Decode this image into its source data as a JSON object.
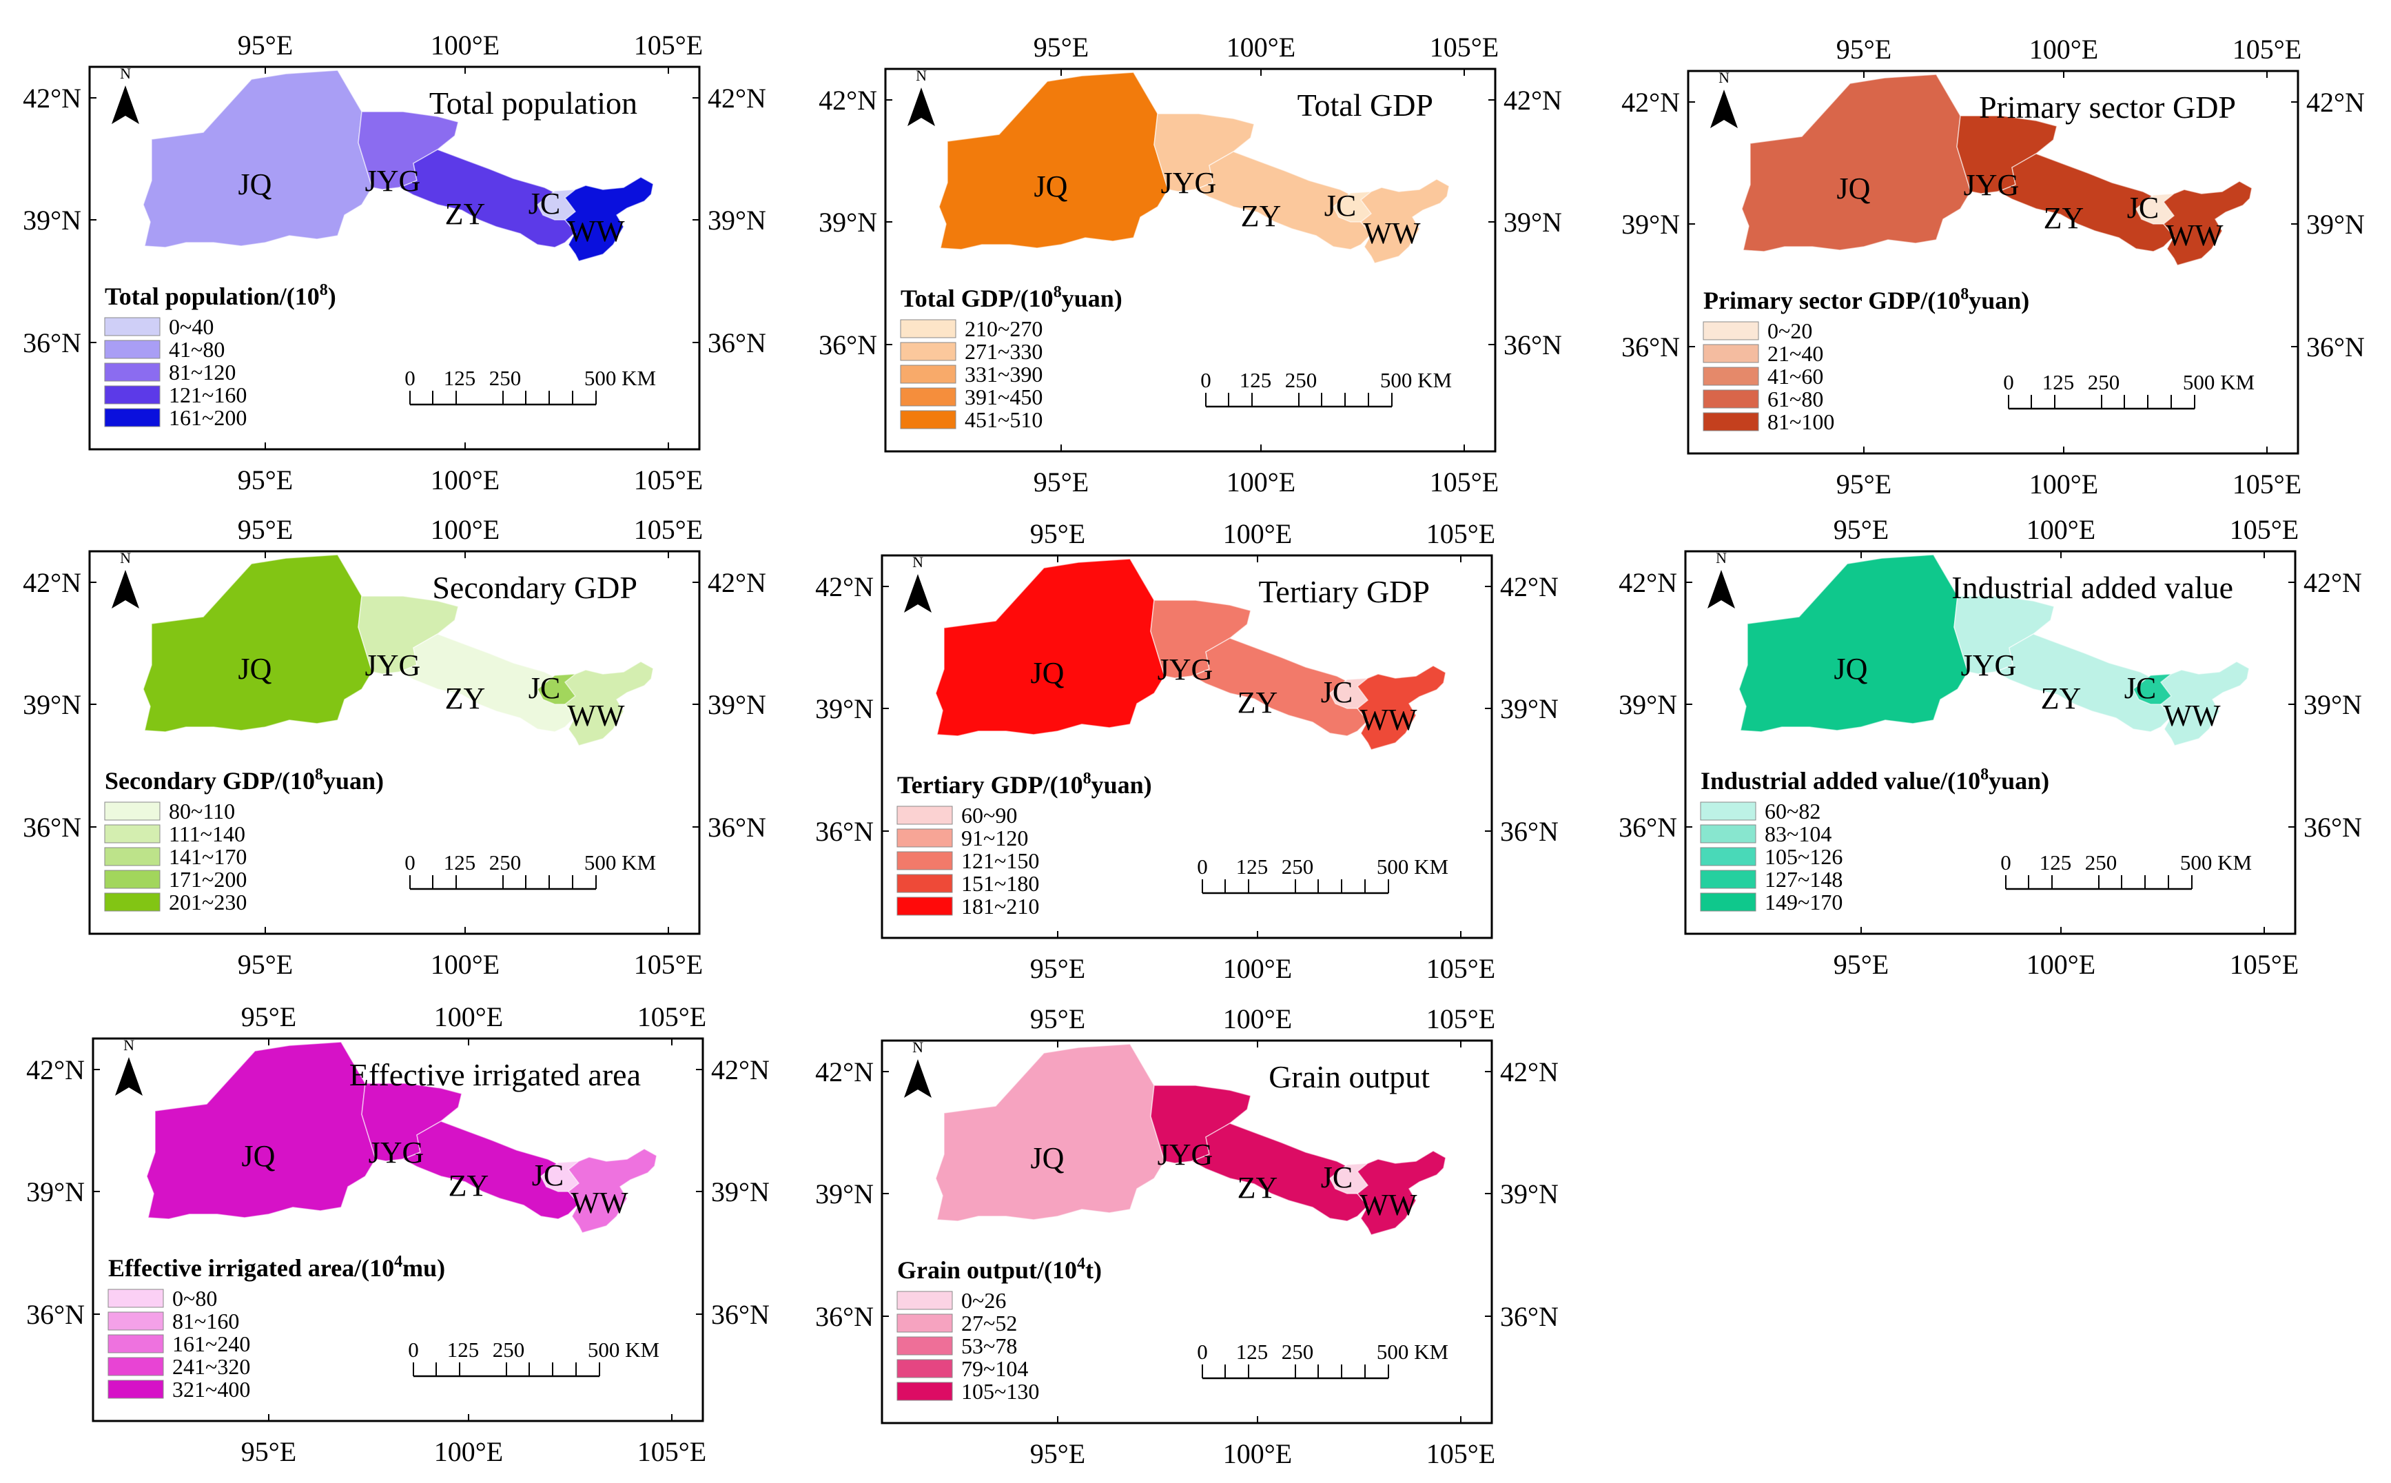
{
  "figure": {
    "shared": {
      "lon_labels": [
        "95°E",
        "100°E",
        "105°E"
      ],
      "lat_labels": [
        "42°N",
        "39°N",
        "36°N"
      ],
      "north_label": "N",
      "scale_labels": [
        "0",
        "125",
        "250",
        "500 KM"
      ],
      "regions": [
        "JQ",
        "JYG",
        "ZY",
        "JC",
        "WW"
      ]
    },
    "panels": [
      {
        "title": "Total population",
        "legend_title": "Total population/(10",
        "legend_sup": "8",
        "legend_unit": ")",
        "legend_items": [
          "0~40",
          "41~80",
          "81~120",
          "121~160",
          "161~200"
        ],
        "colors": [
          "#cfcff7",
          "#a99ef5",
          "#8b6cf0",
          "#5c3ae8",
          "#0a10dd"
        ],
        "region_class": [
          2,
          3,
          4,
          1,
          5
        ]
      },
      {
        "title": "Total GDP",
        "legend_title": "Total GDP/(10",
        "legend_sup": "8",
        "legend_unit": "yuan)",
        "legend_items": [
          "210~270",
          "271~330",
          "331~390",
          "391~450",
          "451~510"
        ],
        "colors": [
          "#fde5c8",
          "#fbc89c",
          "#f8aa6a",
          "#f58e3c",
          "#f27b0c"
        ],
        "region_class": [
          5,
          2,
          2,
          1,
          2
        ]
      },
      {
        "title": "Primary sector GDP",
        "legend_title": "Primary sector GDP/(10",
        "legend_sup": "8",
        "legend_unit": "yuan)",
        "legend_items": [
          "0~20",
          "21~40",
          "41~60",
          "61~80",
          "81~100"
        ],
        "colors": [
          "#fbe7d6",
          "#f4bca0",
          "#e5896a",
          "#d9664a",
          "#c4401e"
        ],
        "region_class": [
          4,
          5,
          5,
          1,
          5
        ]
      },
      {
        "title": "Secondary GDP",
        "legend_title": "Secondary GDP/(10",
        "legend_sup": "8",
        "legend_unit": "yuan)",
        "legend_items": [
          "80~110",
          "111~140",
          "141~170",
          "171~200",
          "201~230"
        ],
        "colors": [
          "#edf9de",
          "#d4eeb0",
          "#bde38a",
          "#a2d65c",
          "#82c514"
        ],
        "region_class": [
          5,
          2,
          1,
          4,
          2
        ]
      },
      {
        "title": "Tertiary GDP",
        "legend_title": "Tertiary GDP/(10",
        "legend_sup": "8",
        "legend_unit": "yuan)",
        "legend_items": [
          "60~90",
          "91~120",
          "121~150",
          "151~180",
          "181~210"
        ],
        "colors": [
          "#fbd2d2",
          "#f7a596",
          "#f27a6a",
          "#ee4a38",
          "#ff0a0a"
        ],
        "region_class": [
          5,
          3,
          3,
          1,
          4
        ]
      },
      {
        "title": "Industrial added value",
        "legend_title": "Industrial added value/(10",
        "legend_sup": "8",
        "legend_unit": "yuan)",
        "legend_items": [
          "60~82",
          "83~104",
          "105~126",
          "127~148",
          "149~170"
        ],
        "colors": [
          "#bdf2e6",
          "#88e6cf",
          "#49d9b8",
          "#25d09f",
          "#0fc88c"
        ],
        "region_class": [
          5,
          1,
          1,
          4,
          1
        ]
      },
      {
        "title": "Effective irrigated area",
        "legend_title": "Effective irrigated area/(10",
        "legend_sup": "4",
        "legend_unit": "mu)",
        "legend_items": [
          "0~80",
          "81~160",
          "161~240",
          "241~320",
          "321~400"
        ],
        "colors": [
          "#fbd0f5",
          "#f4a1e8",
          "#ee72df",
          "#e844d4",
          "#d612c7"
        ],
        "region_class": [
          5,
          5,
          5,
          1,
          3
        ]
      },
      {
        "title": "Grain output",
        "legend_title": "Grain output/(10",
        "legend_sup": "4",
        "legend_unit": "t)",
        "legend_items": [
          "0~26",
          "27~52",
          "53~78",
          "79~104",
          "105~130"
        ],
        "colors": [
          "#fbd3e4",
          "#f6a3c0",
          "#ee6f98",
          "#e54682",
          "#dc0c64"
        ],
        "region_class": [
          2,
          5,
          5,
          1,
          5
        ]
      }
    ]
  }
}
